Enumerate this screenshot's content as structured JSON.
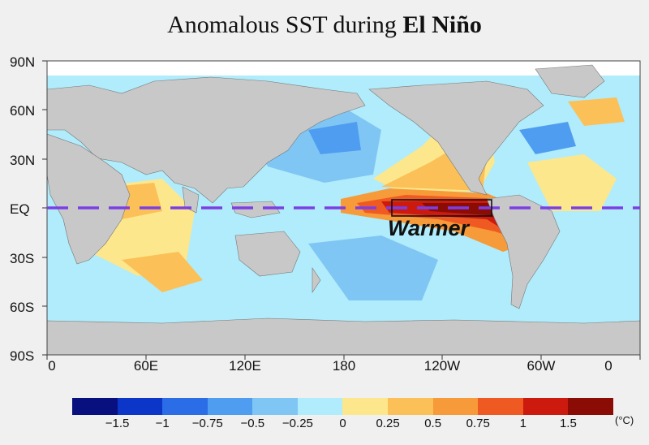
{
  "title": {
    "prefix": "Anomalous SST during ",
    "emphasis": "El Niño"
  },
  "annotation": "Warmer",
  "lat_labels": [
    "90N",
    "60N",
    "30N",
    "EQ",
    "30S",
    "60S",
    "90S"
  ],
  "lon_labels": [
    "0",
    "60E",
    "120E",
    "180",
    "120W",
    "60W",
    "0"
  ],
  "colorbar": {
    "colors": [
      "#08107f",
      "#0b36c8",
      "#2a6de6",
      "#4f9df0",
      "#7fc6f4",
      "#b0ecfb",
      "#fce78d",
      "#fbc057",
      "#f79a39",
      "#ef5a22",
      "#cc1a0e",
      "#8a0c05"
    ],
    "labels": [
      "-1.5",
      "-1",
      "-0.75",
      "-0.5",
      "-0.25",
      "0",
      "0.25",
      "0.5",
      "0.75",
      "1",
      "1.5"
    ],
    "unit": "(°C)"
  }
}
